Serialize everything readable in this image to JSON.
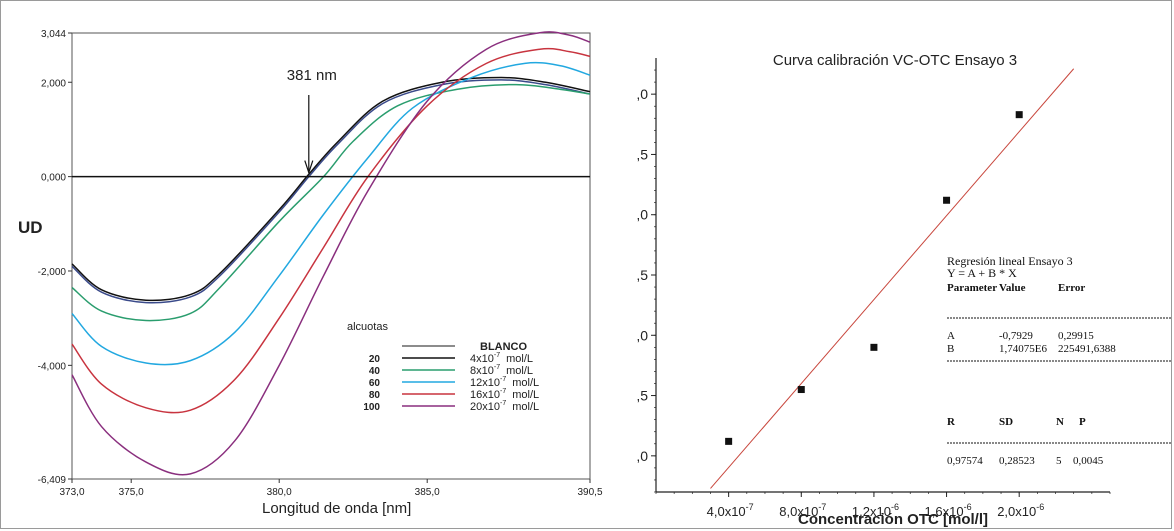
{
  "chart_data": [
    {
      "type": "line",
      "title": "",
      "xlabel": "Longitud de onda [nm]",
      "ylabel": "UD",
      "xlim": [
        373.0,
        390.5
      ],
      "ylim": [
        -6.409,
        3.044
      ],
      "x_ticks": [
        "373,0",
        "375,0",
        "380,0",
        "385,0",
        "390,5"
      ],
      "x_tick_values": [
        373.0,
        375.0,
        380.0,
        385.0,
        390.5
      ],
      "y_ticks": [
        "3,044",
        "2,000",
        "0,000",
        "-2,000",
        "-4,000",
        "-6,409"
      ],
      "y_tick_values": [
        3.044,
        2.0,
        0.0,
        -2.0,
        -4.0,
        -6.409
      ],
      "annotation": {
        "text": "381 nm",
        "x": 381.0
      },
      "legend": {
        "position": "bottom-right",
        "title": "alcuotas",
        "entries": [
          {
            "qty": "",
            "label": "BLANCO",
            "unit": "",
            "color": "#666666"
          },
          {
            "qty": "20",
            "label": "4x10",
            "exp": "-7",
            "unit": "mol/L",
            "color": "#111111"
          },
          {
            "qty": "40",
            "label": "8x10",
            "exp": "-7",
            "unit": "mol/L",
            "color": "#2a9d6e"
          },
          {
            "qty": "60",
            "label": "12x10",
            "exp": "-7",
            "unit": "mol/L",
            "color": "#22a8e0"
          },
          {
            "qty": "80",
            "label": "16x10",
            "exp": "-7",
            "unit": "mol/L",
            "color": "#c8343f"
          },
          {
            "qty": "100",
            "label": "20x10",
            "exp": "-7",
            "unit": "mol/L",
            "color": "#8a2f7e"
          }
        ]
      },
      "series": [
        {
          "name": "BLANCO",
          "color": "#3a4a8a",
          "x": [
            373,
            374,
            375.5,
            377,
            378,
            380,
            381,
            382,
            383.5,
            385.5,
            387.5,
            389,
            390.5
          ],
          "y": [
            -1.9,
            -2.45,
            -2.67,
            -2.55,
            -2.1,
            -0.75,
            0.0,
            0.7,
            1.55,
            1.95,
            2.05,
            1.95,
            1.75
          ]
        },
        {
          "name": "4x10-7 mol/L",
          "color": "#111111",
          "x": [
            373,
            374,
            375.5,
            377,
            378,
            380,
            381,
            382,
            383.5,
            385.5,
            387.5,
            389,
            390.5
          ],
          "y": [
            -1.85,
            -2.4,
            -2.62,
            -2.5,
            -2.05,
            -0.7,
            0.05,
            0.75,
            1.6,
            2.0,
            2.1,
            2.0,
            1.8
          ]
        },
        {
          "name": "8x10-7 mol/L",
          "color": "#2a9d6e",
          "x": [
            373,
            374,
            375.5,
            377,
            378,
            380,
            381.5,
            382.5,
            384,
            386,
            388,
            389.5,
            390.5
          ],
          "y": [
            -2.35,
            -2.85,
            -3.05,
            -2.9,
            -2.35,
            -0.95,
            0.0,
            0.75,
            1.5,
            1.85,
            1.95,
            1.85,
            1.75
          ]
        },
        {
          "name": "12x10-7 mol/L",
          "color": "#22a8e0",
          "x": [
            373,
            374,
            375.5,
            377,
            378.5,
            380,
            381.5,
            383,
            384.5,
            386.5,
            388.3,
            389.5,
            390.5
          ],
          "y": [
            -2.9,
            -3.6,
            -3.95,
            -3.9,
            -3.3,
            -2.1,
            -0.8,
            0.4,
            1.45,
            2.1,
            2.4,
            2.35,
            2.15
          ]
        },
        {
          "name": "16x10-7 mol/L",
          "color": "#c8343f",
          "x": [
            373,
            374,
            375.5,
            377,
            378.5,
            380,
            381.5,
            383,
            385,
            387,
            388.8,
            389.8,
            390.5
          ],
          "y": [
            -3.55,
            -4.4,
            -4.9,
            -4.95,
            -4.3,
            -3.0,
            -1.5,
            0.0,
            1.5,
            2.4,
            2.7,
            2.65,
            2.55
          ]
        },
        {
          "name": "20x10-7 mol/L",
          "color": "#8a2f7e",
          "x": [
            373,
            374,
            375.5,
            377,
            378.5,
            380,
            381.5,
            383,
            385,
            387,
            388.8,
            389.8,
            390.5
          ],
          "y": [
            -4.2,
            -5.3,
            -6.05,
            -6.3,
            -5.6,
            -4.0,
            -2.1,
            -0.3,
            1.6,
            2.7,
            3.05,
            3.0,
            2.85
          ]
        }
      ]
    },
    {
      "type": "scatter",
      "title": "Curva calibración VC-OTC Ensayo 3",
      "xlabel": "Concentración OTC [mol/l]",
      "ylabel": "",
      "x_ticks": [
        {
          "base": "4,0x10",
          "exp": "-7"
        },
        {
          "base": "8,0x10",
          "exp": "-7"
        },
        {
          "base": "1,2x10",
          "exp": "-6"
        },
        {
          "base": "1,6x10",
          "exp": "-6"
        },
        {
          "base": "2,0x10",
          "exp": "-6"
        }
      ],
      "x_tick_values": [
        4e-07,
        8e-07,
        1.2e-06,
        1.6e-06,
        2e-06
      ],
      "y_ticks": [
        ",0",
        ",5",
        ",0",
        ",5",
        ",0",
        ",5",
        ",0"
      ],
      "y_tick_values": [
        3.0,
        2.5,
        2.0,
        1.5,
        1.0,
        0.5,
        0.0
      ],
      "xlim": [
        0,
        2.5e-06
      ],
      "ylim": [
        -0.3,
        3.3
      ],
      "points": [
        {
          "x": 4e-07,
          "y": 0.12
        },
        {
          "x": 8e-07,
          "y": 0.55
        },
        {
          "x": 1.2e-06,
          "y": 0.9
        },
        {
          "x": 1.6e-06,
          "y": 2.12
        },
        {
          "x": 2e-06,
          "y": 2.83
        }
      ],
      "fit": {
        "intercept": -0.7929,
        "slope": 1740750,
        "x_range": [
          3e-07,
          2.3e-06
        ],
        "color": "#c8463c"
      },
      "regression_box": {
        "title": "Regresión lineal Ensayo 3",
        "equation": "Y = A + B * X",
        "header": [
          "Parameter",
          "Value",
          "Error"
        ],
        "rows": [
          [
            "A",
            "-0,7929",
            "0,29915"
          ],
          [
            "B",
            "1,74075E6",
            "225491,6388"
          ]
        ],
        "stats_header": [
          "R",
          "SD",
          "N",
          "P"
        ],
        "stats": [
          "0,97574",
          "0,28523",
          "5",
          "0,0045"
        ]
      }
    }
  ]
}
